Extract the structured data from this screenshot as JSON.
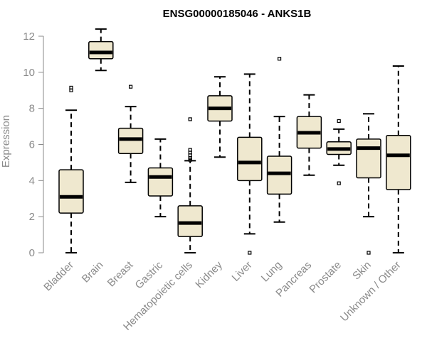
{
  "chart_data": {
    "type": "boxplot",
    "title": "ENSG00000185046 - ANKS1B",
    "ylabel": "Expression",
    "xlabel": "",
    "ylim": [
      0,
      12.4
    ],
    "yticks": [
      0,
      2,
      4,
      6,
      8,
      10,
      12
    ],
    "grid": false,
    "colors": {
      "box_fill": "#efe8cf",
      "box_stroke": "#000000",
      "axis": "#8a8a8a"
    },
    "categories": [
      "Bladder",
      "Brain",
      "Breast",
      "Gastric",
      "Hematopoietic cells",
      "Kidney",
      "Liver",
      "Lung",
      "Pancreas",
      "Prostate",
      "Skin",
      "Unknown / Other"
    ],
    "boxes": [
      {
        "category": "Bladder",
        "min": 0.0,
        "q1": 2.2,
        "median": 3.1,
        "q3": 4.6,
        "max": 7.9,
        "outliers": [
          9.0,
          9.15
        ]
      },
      {
        "category": "Brain",
        "min": 10.1,
        "q1": 10.75,
        "median": 11.1,
        "q3": 11.7,
        "max": 12.4,
        "outliers": []
      },
      {
        "category": "Breast",
        "min": 3.9,
        "q1": 5.5,
        "median": 6.3,
        "q3": 6.9,
        "max": 8.1,
        "outliers": [
          9.2
        ]
      },
      {
        "category": "Gastric",
        "min": 2.0,
        "q1": 3.15,
        "median": 4.2,
        "q3": 4.7,
        "max": 6.3,
        "outliers": []
      },
      {
        "category": "Hematopoietic cells",
        "min": 0.0,
        "q1": 0.9,
        "median": 1.65,
        "q3": 2.6,
        "max": 5.1,
        "outliers": [
          5.15,
          5.25,
          5.4,
          5.55,
          5.7,
          7.4
        ]
      },
      {
        "category": "Kidney",
        "min": 5.3,
        "q1": 7.3,
        "median": 8.0,
        "q3": 8.7,
        "max": 9.75,
        "outliers": []
      },
      {
        "category": "Liver",
        "min": 1.05,
        "q1": 4.0,
        "median": 5.0,
        "q3": 6.4,
        "max": 9.9,
        "outliers": [
          0.0
        ]
      },
      {
        "category": "Lung",
        "min": 1.7,
        "q1": 3.25,
        "median": 4.4,
        "q3": 5.35,
        "max": 7.55,
        "outliers": [
          10.75
        ]
      },
      {
        "category": "Pancreas",
        "min": 4.3,
        "q1": 5.8,
        "median": 6.65,
        "q3": 7.55,
        "max": 8.75,
        "outliers": []
      },
      {
        "category": "Prostate",
        "min": 4.85,
        "q1": 5.45,
        "median": 5.75,
        "q3": 6.15,
        "max": 6.85,
        "outliers": [
          3.85,
          7.3
        ]
      },
      {
        "category": "Skin",
        "min": 2.0,
        "q1": 4.15,
        "median": 5.8,
        "q3": 6.3,
        "max": 7.7,
        "outliers": [
          0.0
        ]
      },
      {
        "category": "Unknown / Other",
        "min": 0.0,
        "q1": 3.5,
        "median": 5.4,
        "q3": 6.5,
        "max": 10.35,
        "outliers": []
      }
    ]
  }
}
